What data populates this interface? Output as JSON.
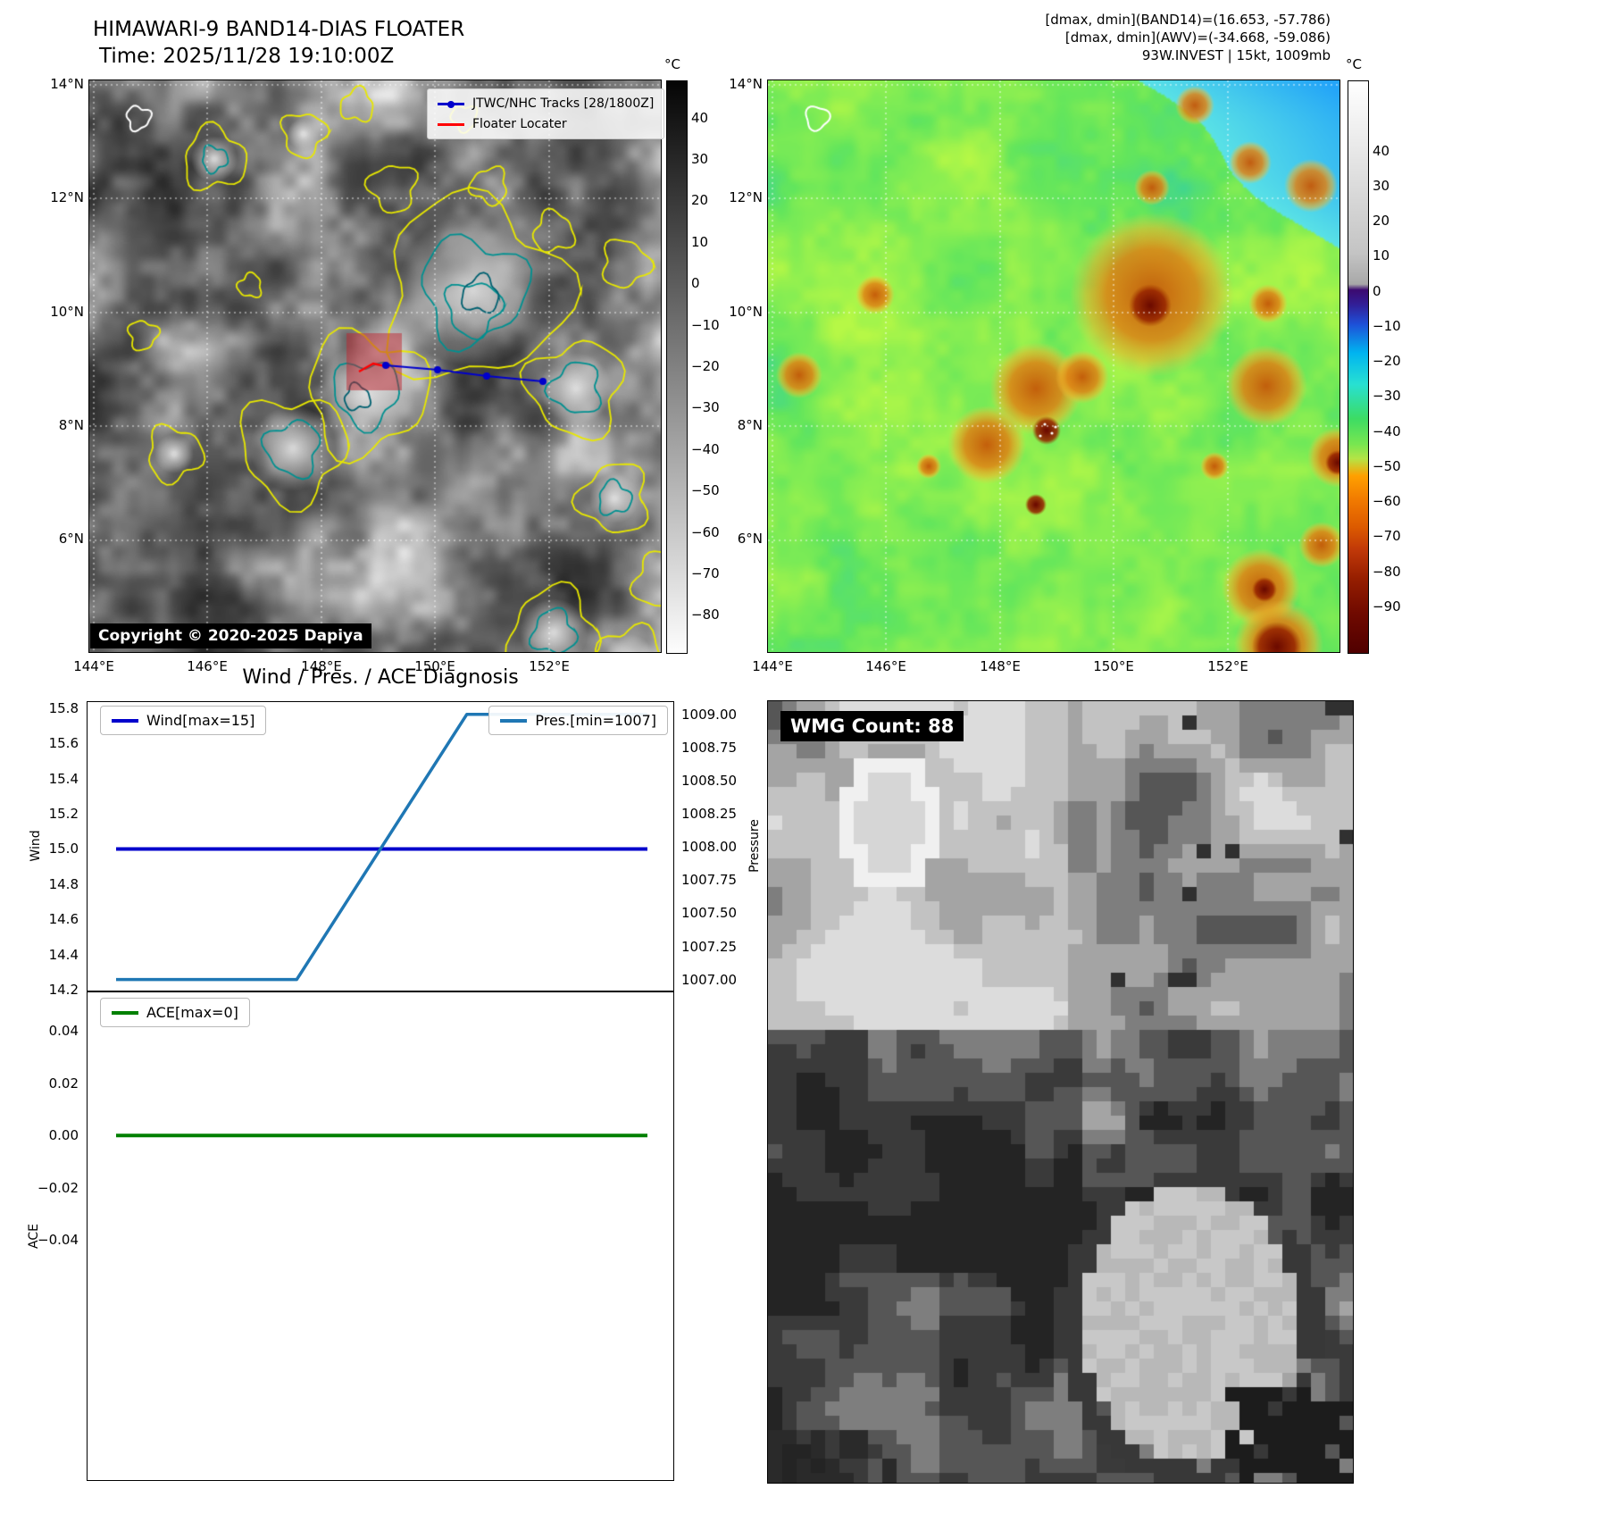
{
  "band14_panel": {
    "title": "HIMAWARI-9 BAND14-DIAS FLOATER",
    "time_label": "Time: 2025/11/28 19:10:00Z",
    "legend": {
      "track_label": "JTWC/NHC Tracks [28/1800Z]",
      "floater_label": "Floater Locater",
      "track_color": "#0000cc",
      "floater_color": "#ff0000"
    },
    "copyright": "Copyright © 2020-2025 Dapiya",
    "axes": {
      "x_tick_labels": [
        "144°E",
        "146°E",
        "148°E",
        "150°E",
        "152°E"
      ],
      "y_tick_labels": [
        "14°N",
        "12°N",
        "10°N",
        "8°N",
        "6°N"
      ]
    },
    "colorbar": {
      "unit": "°C",
      "tick_labels": [
        "40",
        "30",
        "20",
        "10",
        "0",
        "−10",
        "−20",
        "−30",
        "−40",
        "−50",
        "−60",
        "−70",
        "−80"
      ],
      "tick_values": [
        40,
        30,
        20,
        10,
        0,
        -10,
        -20,
        -30,
        -40,
        -50,
        -60,
        -70,
        -80
      ]
    }
  },
  "awv_panel": {
    "info_lines": [
      "[dmax, dmin](BAND14)=(16.653, -57.786)",
      "[dmax, dmin](AWV)=(-34.668, -59.086)",
      "93W.INVEST | 15kt, 1009mb"
    ],
    "axes": {
      "x_tick_labels": [
        "144°E",
        "146°E",
        "148°E",
        "150°E",
        "152°E"
      ],
      "y_tick_labels": [
        "14°N",
        "12°N",
        "10°N",
        "8°N",
        "6°N"
      ]
    },
    "colorbar": {
      "unit": "°C",
      "tick_labels": [
        "40",
        "30",
        "20",
        "10",
        "0",
        "−10",
        "−20",
        "−30",
        "−40",
        "−50",
        "−60",
        "−70",
        "−80",
        "−90"
      ],
      "tick_values": [
        40,
        30,
        20,
        10,
        0,
        -10,
        -20,
        -30,
        -40,
        -50,
        -60,
        -70,
        -80,
        -90
      ]
    }
  },
  "wmg_panel": {
    "count_label": "WMG Count: 88"
  },
  "chart_data": [
    {
      "type": "line",
      "title": "Wind / Pres. / ACE Diagnosis",
      "series": [
        {
          "name": "Wind[max=15]",
          "axis": "left",
          "color": "#0000cc",
          "x": [
            0,
            1
          ],
          "values": [
            15.0,
            15.0
          ]
        },
        {
          "name": "Pres.[min=1007]",
          "axis": "right",
          "color": "#1f77b4",
          "x": [
            0,
            0.34,
            0.66,
            1
          ],
          "values": [
            1007.0,
            1007.0,
            1009.0,
            1009.0
          ]
        }
      ],
      "left_axis": {
        "label": "Wind",
        "tick_labels": [
          "14.2",
          "14.4",
          "14.6",
          "14.8",
          "15.0",
          "15.2",
          "15.4",
          "15.6",
          "15.8"
        ],
        "tick_values": [
          14.2,
          14.4,
          14.6,
          14.8,
          15.0,
          15.2,
          15.4,
          15.6,
          15.8
        ],
        "lim": [
          14.19,
          15.84
        ]
      },
      "right_axis": {
        "label": "Pressure",
        "tick_labels": [
          "1007.00",
          "1007.25",
          "1007.50",
          "1007.75",
          "1008.00",
          "1008.25",
          "1008.50",
          "1008.75",
          "1009.00"
        ],
        "tick_values": [
          1007.0,
          1007.25,
          1007.5,
          1007.75,
          1008.0,
          1008.25,
          1008.5,
          1008.75,
          1009.0
        ],
        "lim": [
          1006.91,
          1009.1
        ]
      },
      "grid": false,
      "legend_position": "inside top-left and top-right"
    },
    {
      "type": "line",
      "series": [
        {
          "name": "ACE[max=0]",
          "axis": "left",
          "color": "#008000",
          "x": [
            0,
            1
          ],
          "values": [
            0.0,
            0.0
          ]
        }
      ],
      "left_axis": {
        "label": "ACE",
        "tick_labels": [
          "−0.04",
          "−0.02",
          "0.00",
          "0.02",
          "0.04"
        ],
        "tick_values": [
          -0.04,
          -0.02,
          0.0,
          0.02,
          0.04
        ],
        "lim": [
          -0.132,
          0.055
        ]
      },
      "grid": false,
      "legend_position": "inside top-left"
    }
  ]
}
